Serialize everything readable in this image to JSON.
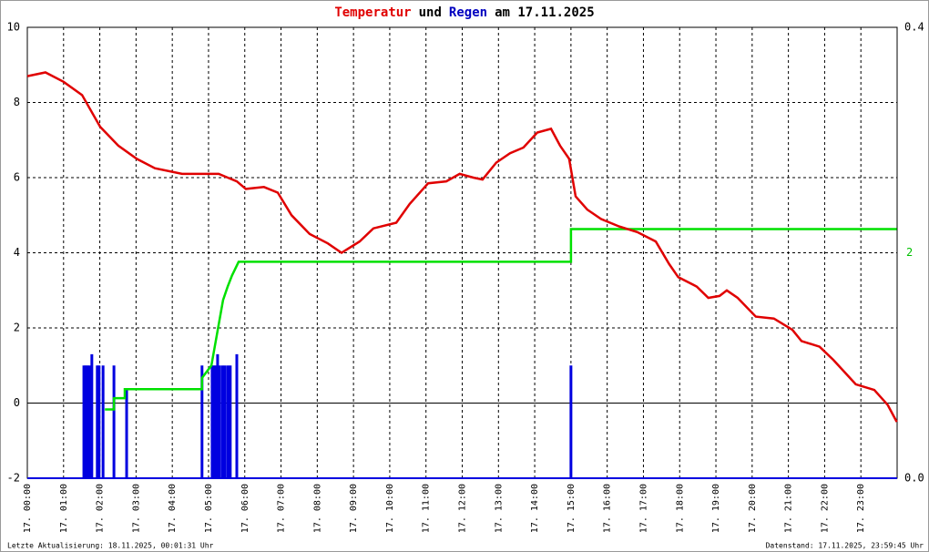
{
  "chart_data": {
    "type": "line",
    "title_parts": [
      {
        "text": "Temperatur",
        "color": "#e00000"
      },
      {
        "text": "und",
        "color": "#000000"
      },
      {
        "text": "Regen",
        "color": "#0000c0"
      },
      {
        "text": "am 17.11.2025",
        "color": "#000000"
      }
    ],
    "footer_left": "Letzte Aktualisierung: 18.11.2025, 00:01:31 Uhr",
    "footer_right": "Datenstand: 17.11.2025, 23:59:45 Uhr",
    "xlim": [
      0,
      24
    ],
    "xticks": [
      {
        "value": 0,
        "label": "17. 00:00"
      },
      {
        "value": 1,
        "label": "17. 01:00"
      },
      {
        "value": 2,
        "label": "17. 02:00"
      },
      {
        "value": 3,
        "label": "17. 03:00"
      },
      {
        "value": 4,
        "label": "17. 04:00"
      },
      {
        "value": 5,
        "label": "17. 05:00"
      },
      {
        "value": 6,
        "label": "17. 06:00"
      },
      {
        "value": 7,
        "label": "17. 07:00"
      },
      {
        "value": 8,
        "label": "17. 08:00"
      },
      {
        "value": 9,
        "label": "17. 09:00"
      },
      {
        "value": 10,
        "label": "17. 10:00"
      },
      {
        "value": 11,
        "label": "17. 11:00"
      },
      {
        "value": 12,
        "label": "17. 12:00"
      },
      {
        "value": 13,
        "label": "17. 13:00"
      },
      {
        "value": 14,
        "label": "17. 14:00"
      },
      {
        "value": 15,
        "label": "17. 15:00"
      },
      {
        "value": 16,
        "label": "17. 16:00"
      },
      {
        "value": 17,
        "label": "17. 17:00"
      },
      {
        "value": 18,
        "label": "17. 18:00"
      },
      {
        "value": 19,
        "label": "17. 19:00"
      },
      {
        "value": 20,
        "label": "17. 20:00"
      },
      {
        "value": 21,
        "label": "17. 21:00"
      },
      {
        "value": 22,
        "label": "17. 22:00"
      },
      {
        "value": 23,
        "label": "17. 23:00"
      }
    ],
    "ylim": [
      -2,
      10
    ],
    "yticks": [
      -2,
      0,
      2,
      4,
      6,
      8,
      10
    ],
    "y2lim": [
      0,
      0.4
    ],
    "y2ticks": [
      {
        "value": 0,
        "label": "0.0"
      },
      {
        "value": 0.4,
        "label": "0.4"
      }
    ],
    "y3lim": [
      0,
      4
    ],
    "y3ticks": [
      2
    ],
    "y3color": "#00c000",
    "grid": true,
    "zero_line": true,
    "series": [
      {
        "type": "bar",
        "axis": "y2",
        "color": "#0000e0",
        "x": [
          1.56,
          1.61,
          1.66,
          1.71,
          1.78,
          1.93,
          1.98,
          2.09,
          2.39,
          2.74,
          4.82,
          5.1,
          5.15,
          5.2,
          5.25,
          5.3,
          5.38,
          5.45,
          5.53,
          5.6,
          5.78,
          15.0
        ],
        "values": [
          0.1,
          0.1,
          0.1,
          0.1,
          0.11,
          0.1,
          0.1,
          0.1,
          0.1,
          0.08,
          0.1,
          0.1,
          0.1,
          0.1,
          0.11,
          0.1,
          0.1,
          0.1,
          0.1,
          0.1,
          0.11,
          0.1
        ]
      },
      {
        "type": "line",
        "axis": "y3",
        "color": "#00e000",
        "x": [
          2.14,
          2.39,
          2.39,
          2.69,
          2.69,
          4.82,
          4.82,
          5.08,
          5.4,
          5.53,
          5.65,
          5.83,
          15.0,
          15.0,
          23.99
        ],
        "values": [
          0.61,
          0.61,
          0.71,
          0.71,
          0.79,
          0.79,
          0.89,
          1.0,
          1.58,
          1.7,
          1.8,
          1.92,
          1.92,
          2.21,
          2.21
        ]
      },
      {
        "type": "line",
        "axis": "y",
        "color": "#e00000",
        "x": [
          0,
          0.5,
          1.0,
          1.51,
          2.01,
          2.51,
          3.02,
          3.52,
          4.27,
          5.28,
          5.78,
          6.03,
          6.53,
          6.91,
          7.29,
          7.79,
          8.29,
          8.67,
          9.17,
          9.55,
          10.18,
          10.55,
          11.06,
          11.56,
          11.93,
          12.31,
          12.56,
          12.94,
          13.32,
          13.69,
          14.07,
          14.45,
          14.7,
          14.95,
          15.13,
          15.45,
          15.83,
          16.33,
          16.83,
          17.34,
          17.71,
          17.96,
          18.47,
          18.79,
          19.1,
          19.3,
          19.6,
          20.1,
          20.6,
          21.11,
          21.36,
          21.86,
          22.24,
          22.86,
          23.37,
          23.74,
          23.99
        ],
        "values": [
          8.7,
          8.8,
          8.55,
          8.2,
          7.35,
          6.85,
          6.5,
          6.25,
          6.1,
          6.1,
          5.9,
          5.7,
          5.75,
          5.6,
          5.0,
          4.5,
          4.25,
          4.0,
          4.3,
          4.65,
          4.8,
          5.3,
          5.85,
          5.9,
          6.1,
          6.0,
          5.95,
          6.4,
          6.65,
          6.8,
          7.2,
          7.3,
          6.85,
          6.5,
          5.5,
          5.15,
          4.9,
          4.7,
          4.55,
          4.3,
          3.7,
          3.35,
          3.1,
          2.8,
          2.85,
          3.0,
          2.8,
          2.3,
          2.25,
          1.95,
          1.65,
          1.5,
          1.15,
          0.5,
          0.35,
          -0.05,
          -0.5
        ]
      }
    ]
  }
}
